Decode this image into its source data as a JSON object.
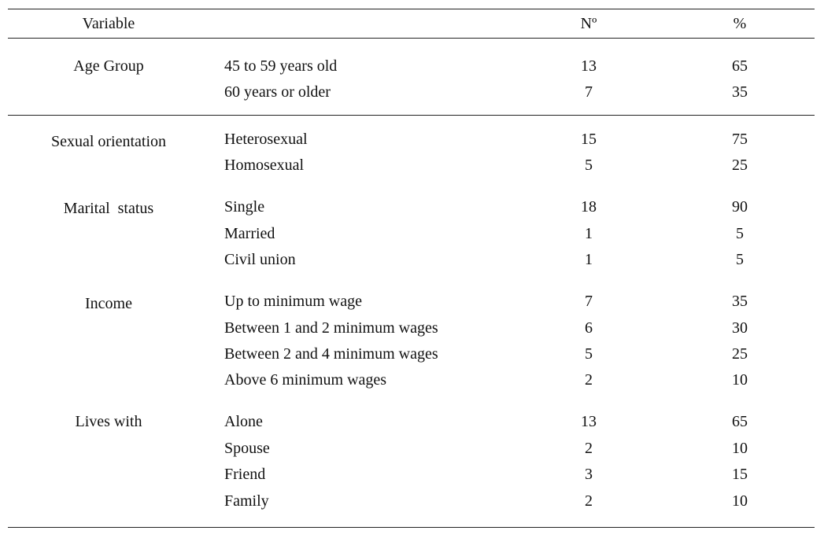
{
  "header": {
    "variable": "Variable",
    "number": "Nº",
    "percent": "%"
  },
  "groups": [
    {
      "name": "Age Group",
      "rows": [
        {
          "label": "45 to 59 years old",
          "n": "13",
          "pct": "65"
        },
        {
          "label": "60 years or older",
          "n": "7",
          "pct": "35"
        }
      ]
    },
    {
      "name": "Sexual orientation",
      "rows": [
        {
          "label": "Heterosexual",
          "n": "15",
          "pct": "75"
        },
        {
          "label": "Homosexual",
          "n": "5",
          "pct": "25"
        }
      ]
    },
    {
      "name": "Marital  status",
      "rows": [
        {
          "label": "Single",
          "n": "18",
          "pct": "90"
        },
        {
          "label": "Married",
          "n": "1",
          "pct": "5"
        },
        {
          "label": "Civil union",
          "n": "1",
          "pct": "5"
        }
      ]
    },
    {
      "name": "Income",
      "rows": [
        {
          "label": "Up to minimum wage",
          "n": "7",
          "pct": "35"
        },
        {
          "label": "Between 1 and 2 minimum wages",
          "n": "6",
          "pct": "30"
        },
        {
          "label": "Between 2 and 4 minimum wages",
          "n": "5",
          "pct": "25"
        },
        {
          "label": "Above 6 minimum wages",
          "n": "2",
          "pct": "10"
        }
      ]
    },
    {
      "name": "Lives with",
      "rows": [
        {
          "label": "Alone",
          "n": "13",
          "pct": "65"
        },
        {
          "label": "Spouse",
          "n": "2",
          "pct": "10"
        },
        {
          "label": "Friend",
          "n": "3",
          "pct": "15"
        },
        {
          "label": "Family",
          "n": "2",
          "pct": "10"
        }
      ]
    }
  ]
}
